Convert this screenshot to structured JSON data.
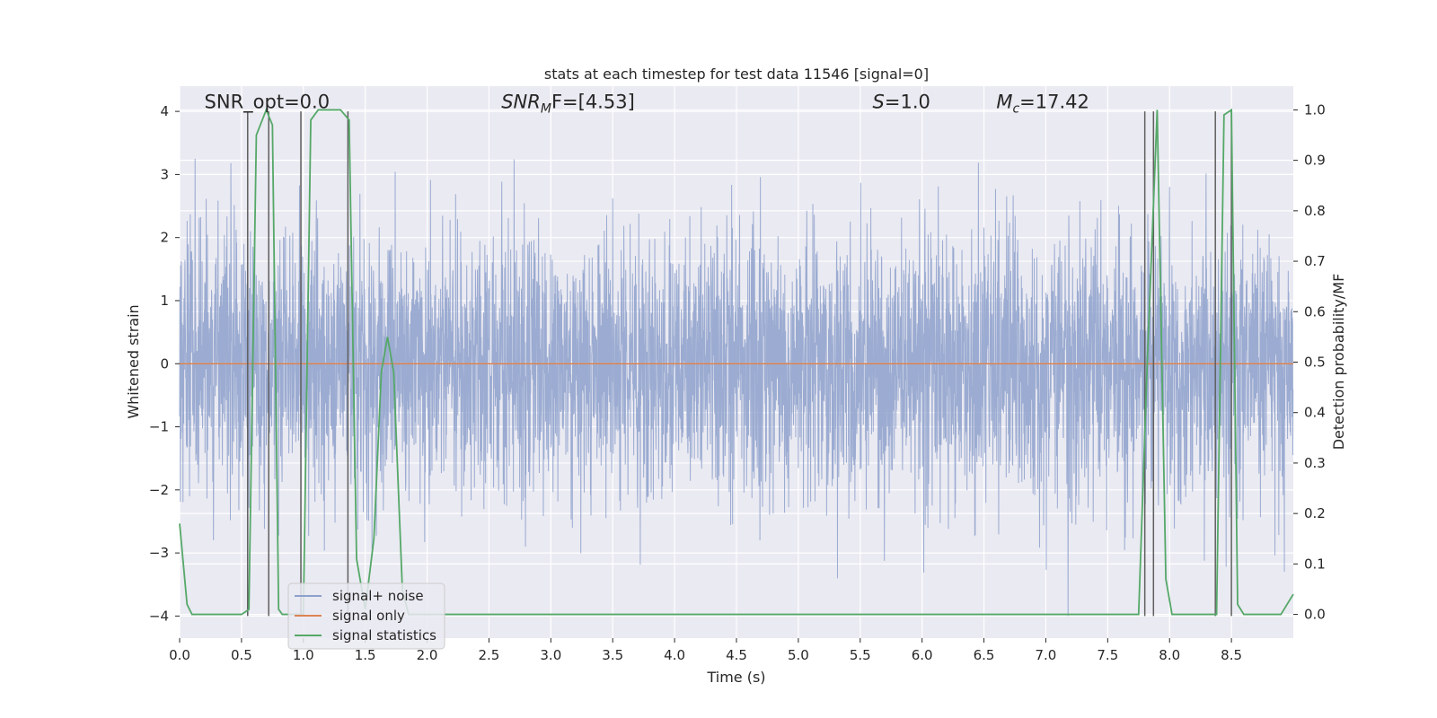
{
  "chart_data": {
    "type": "line",
    "title": "stats at each timestep for test data 11546 [signal=0]",
    "xlabel": "Time (s)",
    "ylabel": "Whitened strain",
    "ylabel_right": "Detection probability/MF",
    "xlim": [
      0.0,
      9.0
    ],
    "ylim": [
      -4.35,
      4.4
    ],
    "ylim_right": [
      -0.047,
      1.047
    ],
    "xticks": [
      0.0,
      0.5,
      1.0,
      1.5,
      2.0,
      2.5,
      3.0,
      3.5,
      4.0,
      4.5,
      5.0,
      5.5,
      6.0,
      6.5,
      7.0,
      7.5,
      8.0,
      8.5
    ],
    "xtick_labels": [
      "0.0",
      "0.5",
      "1.0",
      "1.5",
      "2.0",
      "2.5",
      "3.0",
      "3.5",
      "4.0",
      "4.5",
      "5.0",
      "5.5",
      "6.0",
      "6.5",
      "7.0",
      "7.5",
      "8.0",
      "8.5"
    ],
    "yticks": [
      -4,
      -3,
      -2,
      -1,
      0,
      1,
      2,
      3,
      4
    ],
    "ytick_labels": [
      "−4",
      "−3",
      "−2",
      "−1",
      "0",
      "1",
      "2",
      "3",
      "4"
    ],
    "yticks_right": [
      0.0,
      0.1,
      0.2,
      0.3,
      0.4,
      0.5,
      0.6,
      0.7,
      0.8,
      0.9,
      1.0
    ],
    "ytick_right_labels": [
      "0.0",
      "0.1",
      "0.2",
      "0.3",
      "0.4",
      "0.5",
      "0.6",
      "0.7",
      "0.8",
      "0.9",
      "1.0"
    ],
    "grid": true,
    "legend_position": "lower-left",
    "annotations": [
      {
        "key": "snr_opt",
        "x": 0.2,
        "y": 4.05
      },
      {
        "key": "snr_mf",
        "x": 2.6,
        "y": 4.05
      },
      {
        "key": "s",
        "x": 5.6,
        "y": 4.05
      },
      {
        "key": "mc",
        "x": 6.6,
        "y": 4.05
      }
    ],
    "series": [
      {
        "name": "signal+ noise",
        "color": "#8da0cb",
        "kind": "noise",
        "sample_rate": 512,
        "amplitude_range": [
          -4.0,
          3.5
        ],
        "note_values": "dense band of approximately Gaussian noise, roughly ±2 to ±3.5 peaks"
      },
      {
        "name": "signal only",
        "color": "#dd8452",
        "x": [
          0.0,
          9.0
        ],
        "y": [
          0.0,
          0.0
        ]
      },
      {
        "name": "signal statistics",
        "color": "#55a868",
        "axis": "right",
        "x": [
          0.0,
          0.06,
          0.1,
          0.5,
          0.56,
          0.62,
          0.7,
          0.75,
          0.8,
          0.83,
          1.0,
          1.06,
          1.12,
          1.3,
          1.37,
          1.43,
          1.5,
          1.57,
          1.63,
          1.68,
          1.73,
          1.8,
          1.85,
          7.75,
          7.82,
          7.9,
          7.97,
          8.02,
          8.38,
          8.44,
          8.5,
          8.55,
          8.6,
          8.9,
          8.95,
          9.0
        ],
        "y": [
          0.18,
          0.02,
          0.0,
          0.0,
          0.01,
          0.95,
          1.0,
          0.97,
          0.01,
          0.0,
          0.0,
          0.98,
          1.0,
          1.0,
          0.98,
          0.11,
          0.01,
          0.15,
          0.48,
          0.55,
          0.48,
          0.05,
          0.0,
          0.0,
          0.5,
          1.0,
          0.07,
          0.0,
          0.0,
          0.99,
          1.0,
          0.02,
          0.0,
          0.0,
          0.02,
          0.04
        ]
      }
    ],
    "markers": {
      "color": "#5f5f5f",
      "x_pairs": [
        [
          0.55,
          0.72
        ],
        [
          0.98,
          1.36
        ],
        [
          7.8,
          7.87
        ],
        [
          8.37,
          8.5
        ]
      ]
    }
  },
  "annotations_text": {
    "snr_opt": "SNR_opt=0.0",
    "snr_mf": "SNR",
    "snr_mf_sub": "M",
    "snr_mf_rest": "F=[4.53]",
    "s": "S",
    "s_rest": "=1.0",
    "mc": "M",
    "mc_sub": "c",
    "mc_rest": "=17.42"
  },
  "legend": {
    "items": [
      {
        "label": "signal+ noise",
        "color": "#8da0cb"
      },
      {
        "label": "signal only",
        "color": "#dd8452"
      },
      {
        "label": "signal statistics",
        "color": "#55a868"
      }
    ]
  },
  "style": {
    "axes_bg": "#eaeaf2",
    "grid_color": "#ffffff",
    "text_color": "#262626"
  }
}
